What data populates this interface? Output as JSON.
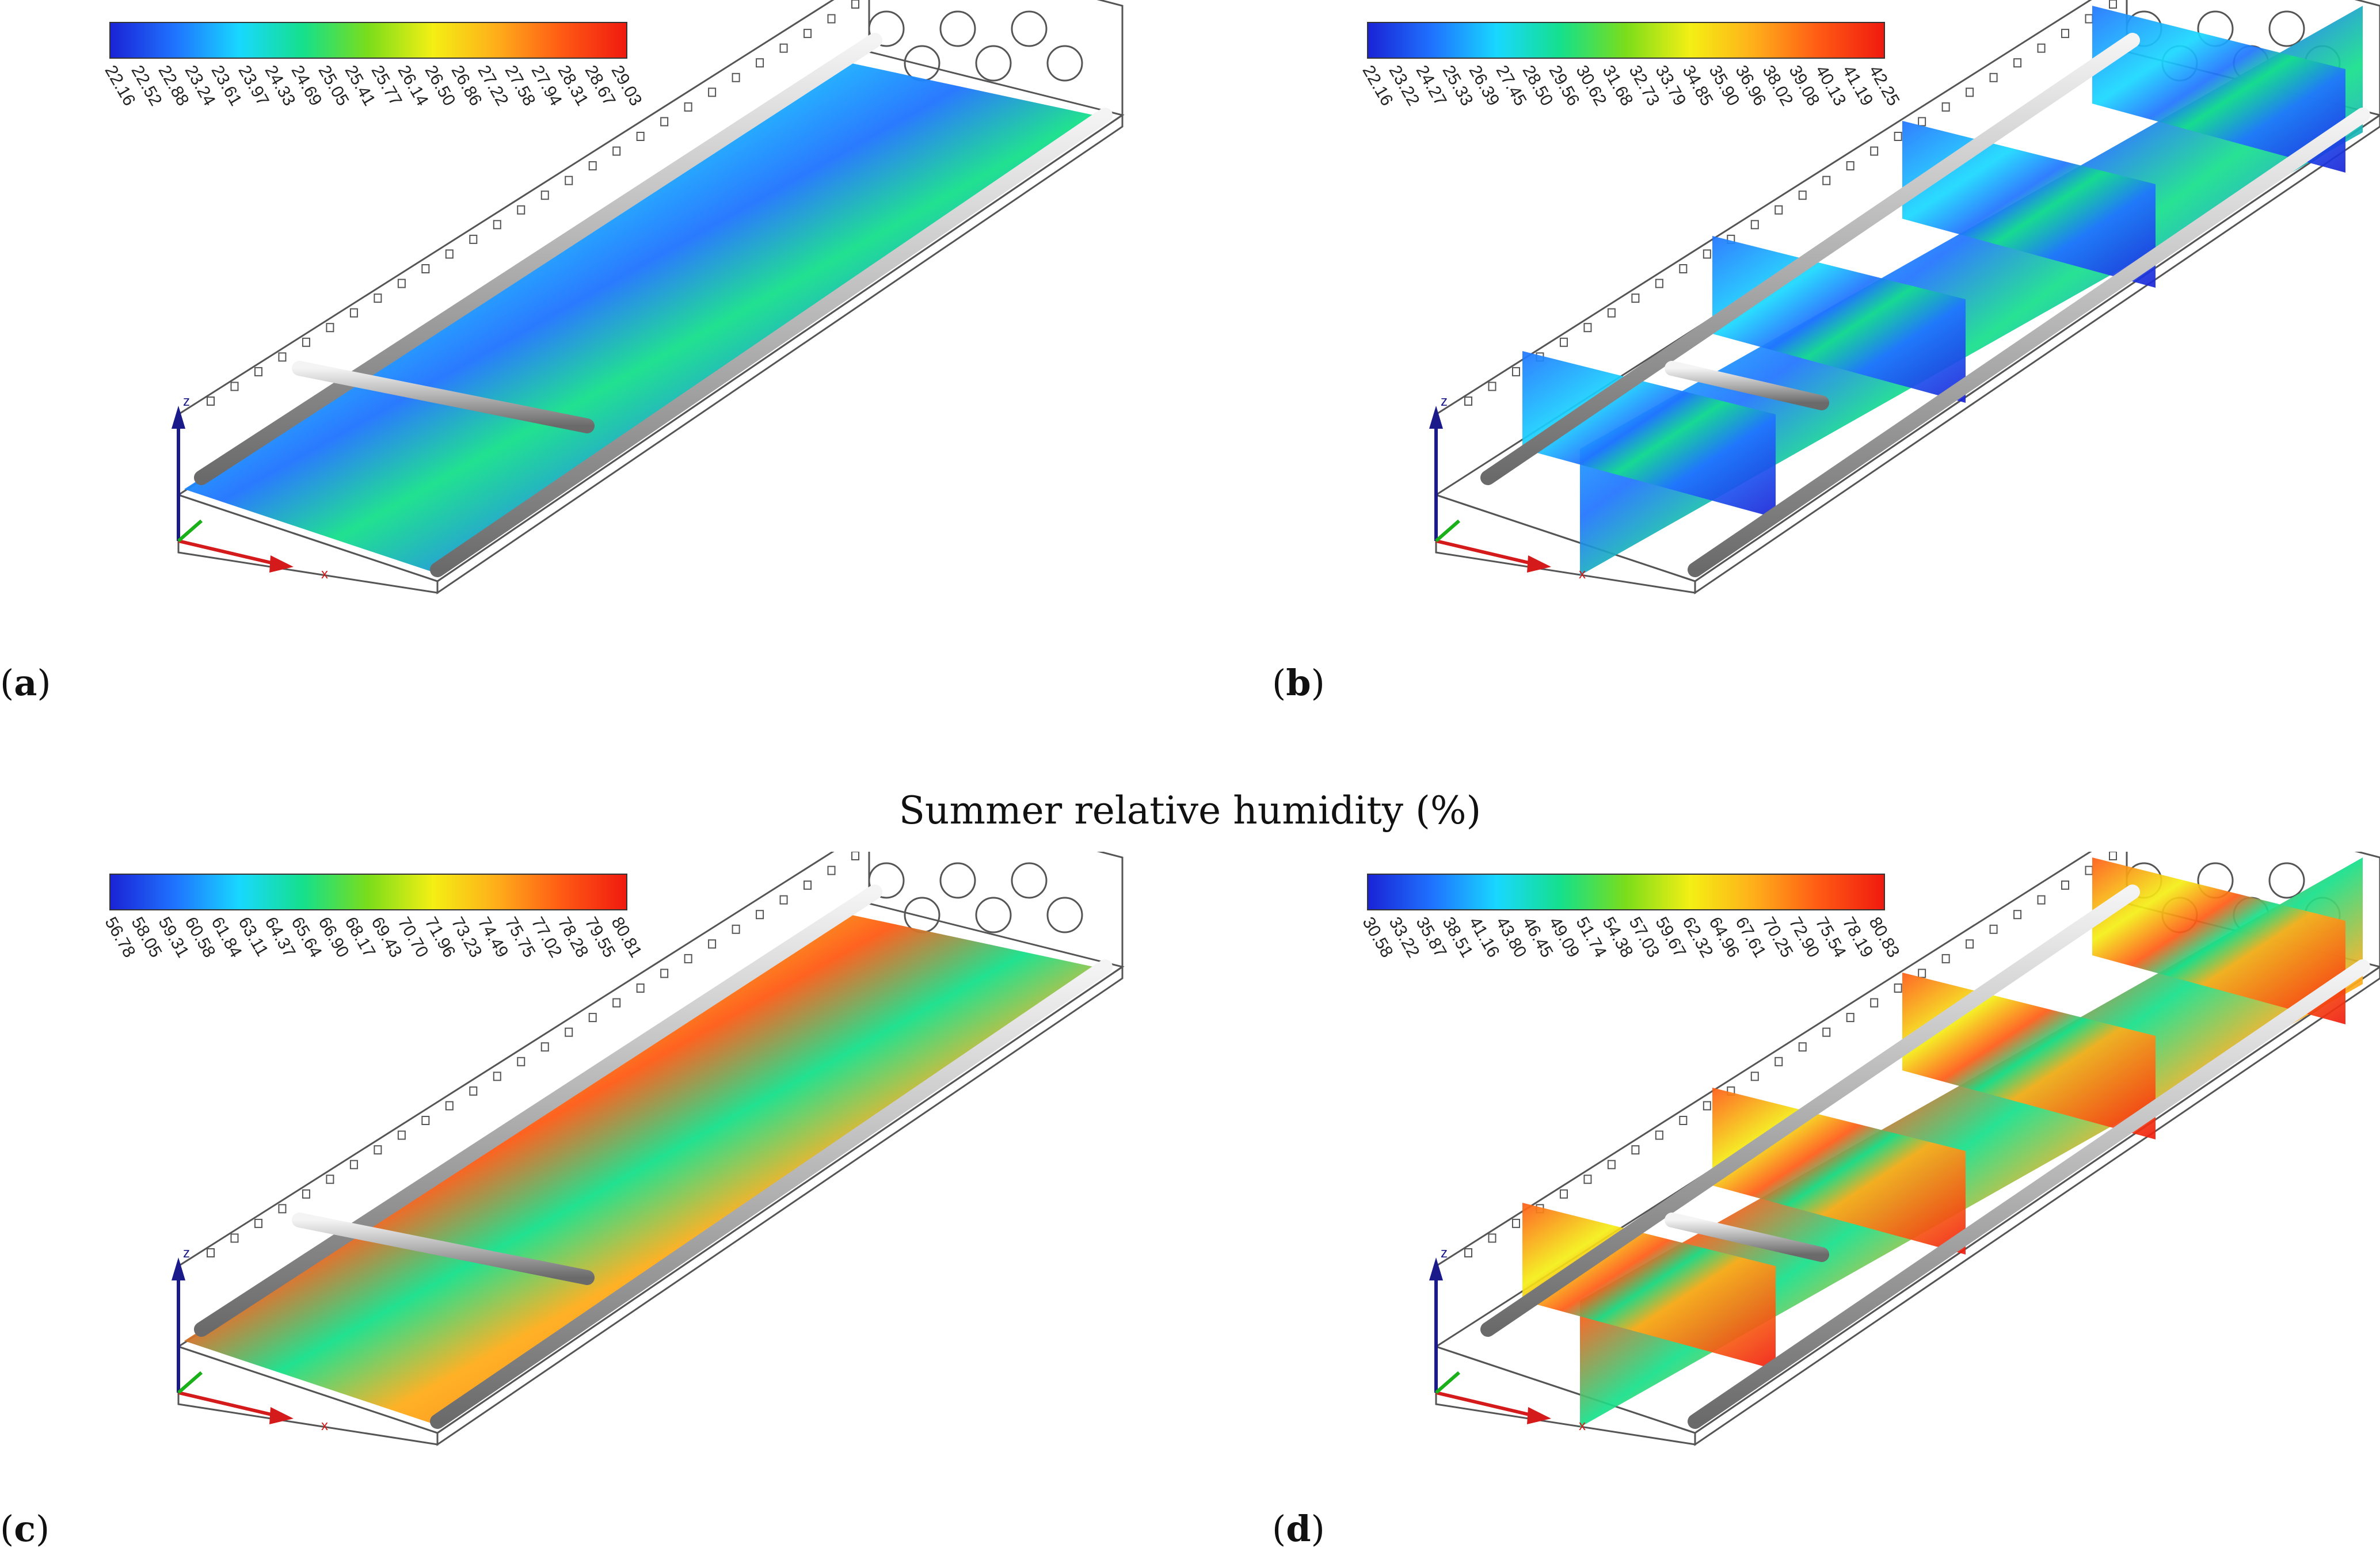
{
  "title": "Summer relative humidity (%)",
  "colors": {
    "scale": [
      "#1a23d6",
      "#1f73ff",
      "#18d8ff",
      "#15e08a",
      "#7bdd1a",
      "#f4ef14",
      "#ffad1a",
      "#ff5a14",
      "#f01a0f"
    ],
    "wire": "#555555",
    "axis_x": "#d41a1a",
    "axis_y": "#1ab01a",
    "axis_z": "#1a1a8a"
  },
  "panels": [
    {
      "id": "a",
      "label": "a",
      "view": "horizontal-plane",
      "field": "cool",
      "ticks": [
        "22.16",
        "22.52",
        "22.88",
        "23.24",
        "23.61",
        "23.97",
        "24.33",
        "24.69",
        "25.05",
        "25.41",
        "25.77",
        "26.14",
        "26.50",
        "26.86",
        "27.22",
        "27.58",
        "27.94",
        "28.31",
        "28.67",
        "29.03"
      ],
      "axis_x": "x",
      "axis_z": "z"
    },
    {
      "id": "b",
      "label": "b",
      "view": "vertical-slices",
      "field": "cool",
      "ticks": [
        "22.16",
        "23.22",
        "24.27",
        "25.33",
        "26.39",
        "27.45",
        "28.50",
        "29.56",
        "30.62",
        "31.68",
        "32.73",
        "33.79",
        "34.85",
        "35.90",
        "36.96",
        "38.02",
        "39.08",
        "40.13",
        "41.19",
        "42.25"
      ],
      "axis_x": "x",
      "axis_z": "z"
    },
    {
      "id": "c",
      "label": "c",
      "view": "horizontal-plane",
      "field": "warm",
      "ticks": [
        "56.78",
        "58.05",
        "59.31",
        "60.58",
        "61.84",
        "63.11",
        "64.37",
        "65.64",
        "66.90",
        "68.17",
        "69.43",
        "70.70",
        "71.96",
        "73.23",
        "74.49",
        "75.75",
        "77.02",
        "78.28",
        "79.55",
        "80.81"
      ],
      "axis_x": "x",
      "axis_z": "z"
    },
    {
      "id": "d",
      "label": "d",
      "view": "vertical-slices",
      "field": "warm",
      "ticks": [
        "30.58",
        "33.22",
        "35.87",
        "38.51",
        "41.16",
        "43.80",
        "46.45",
        "49.09",
        "51.74",
        "54.38",
        "57.03",
        "59.67",
        "62.32",
        "64.96",
        "67.61",
        "70.25",
        "72.90",
        "75.54",
        "78.19",
        "80.83"
      ],
      "axis_x": "x",
      "axis_z": "z"
    }
  ]
}
